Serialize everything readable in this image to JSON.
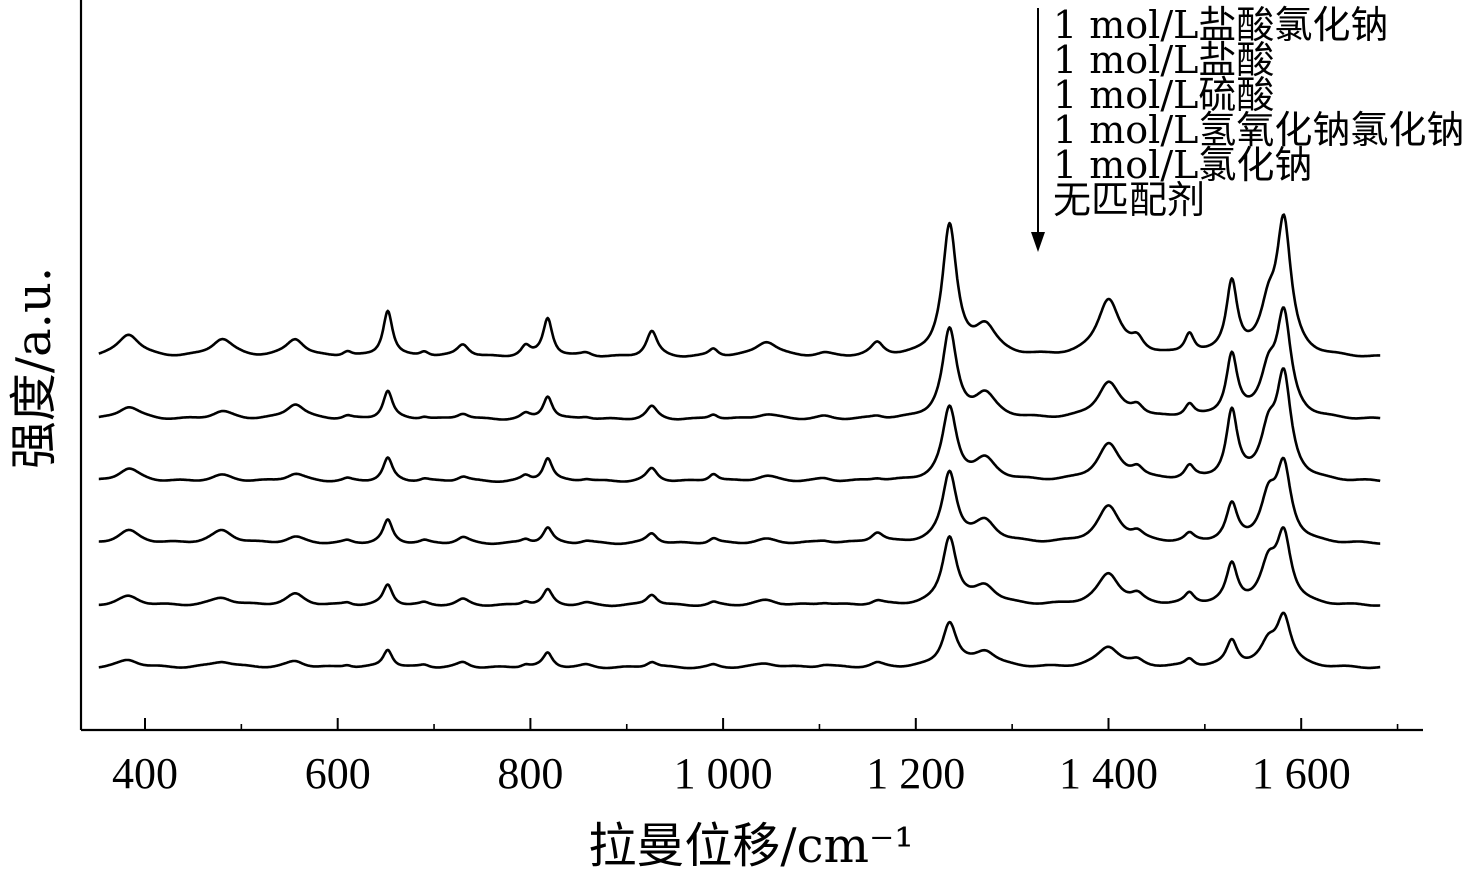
{
  "chart_data": {
    "type": "line",
    "xlabel": "拉曼位移/cm⁻¹",
    "ylabel": "强度/a.u.",
    "xlim": [
      350,
      1700
    ],
    "x_ticks": [
      400,
      600,
      800,
      1000,
      1200,
      1400,
      1600
    ],
    "x_tick_labels": [
      "400",
      "600",
      "800",
      "1 000",
      "1 200",
      "1 400",
      "1 600"
    ],
    "y_ticks_shown": false,
    "grid": false,
    "stacked_offset": true,
    "legend_position": "top-right",
    "legend_arrow": "down",
    "peaks": [
      {
        "x": 383,
        "w": 14
      },
      {
        "x": 480,
        "w": 14
      },
      {
        "x": 556,
        "w": 12
      },
      {
        "x": 610,
        "w": 6
      },
      {
        "x": 652,
        "w": 6
      },
      {
        "x": 690,
        "w": 6
      },
      {
        "x": 730,
        "w": 8
      },
      {
        "x": 795,
        "w": 6
      },
      {
        "x": 818,
        "w": 6
      },
      {
        "x": 858,
        "w": 8
      },
      {
        "x": 926,
        "w": 7
      },
      {
        "x": 990,
        "w": 6
      },
      {
        "x": 1045,
        "w": 14
      },
      {
        "x": 1105,
        "w": 10
      },
      {
        "x": 1160,
        "w": 8
      },
      {
        "x": 1235,
        "w": 9
      },
      {
        "x": 1272,
        "w": 14
      },
      {
        "x": 1400,
        "w": 14
      },
      {
        "x": 1430,
        "w": 8
      },
      {
        "x": 1484,
        "w": 6
      },
      {
        "x": 1528,
        "w": 7
      },
      {
        "x": 1566,
        "w": 10
      },
      {
        "x": 1582,
        "w": 9
      }
    ],
    "series": [
      {
        "name": "1 mol/L盐酸氯化钠",
        "offset": 5,
        "values": [
          0.45,
          0.35,
          0.35,
          0.1,
          0.9,
          0.1,
          0.25,
          0.2,
          0.75,
          0.08,
          0.5,
          0.15,
          0.3,
          0.06,
          0.25,
          2.5,
          0.55,
          1.1,
          0.25,
          0.4,
          1.4,
          0.8,
          2.5
        ]
      },
      {
        "name": "1 mol/L盐酸",
        "offset": 4,
        "values": [
          0.25,
          0.15,
          0.3,
          0.06,
          0.55,
          0.05,
          0.12,
          0.1,
          0.45,
          0.05,
          0.25,
          0.1,
          0.1,
          0.05,
          0.05,
          1.7,
          0.45,
          0.7,
          0.2,
          0.25,
          1.2,
          0.8,
          1.9
        ]
      },
      {
        "name": "1 mol/L硫酸",
        "offset": 3,
        "values": [
          0.25,
          0.12,
          0.15,
          0.05,
          0.45,
          0.05,
          0.1,
          0.1,
          0.45,
          0.05,
          0.25,
          0.15,
          0.1,
          0.05,
          0.05,
          1.4,
          0.4,
          0.7,
          0.2,
          0.25,
          1.3,
          0.85,
          1.9
        ]
      },
      {
        "name": "1 mol/L氢氧化钠氯化钠",
        "offset": 2,
        "values": [
          0.25,
          0.25,
          0.12,
          0.05,
          0.45,
          0.05,
          0.12,
          0.08,
          0.3,
          0.05,
          0.2,
          0.1,
          0.08,
          0.05,
          0.2,
          1.35,
          0.4,
          0.7,
          0.15,
          0.15,
          0.7,
          0.8,
          1.4
        ]
      },
      {
        "name": "1 mol/L氯化钠",
        "offset": 1,
        "values": [
          0.18,
          0.15,
          0.22,
          0.05,
          0.4,
          0.05,
          0.12,
          0.08,
          0.3,
          0.05,
          0.22,
          0.06,
          0.1,
          0.05,
          0.08,
          1.3,
          0.35,
          0.6,
          0.15,
          0.2,
          0.75,
          0.7,
          1.3
        ]
      },
      {
        "name": "无匹配剂",
        "offset": 0,
        "values": [
          0.15,
          0.12,
          0.12,
          0.05,
          0.35,
          0.05,
          0.1,
          0.06,
          0.28,
          0.05,
          0.12,
          0.05,
          0.08,
          0.05,
          0.08,
          0.85,
          0.3,
          0.4,
          0.1,
          0.15,
          0.5,
          0.4,
          0.95
        ]
      }
    ]
  }
}
